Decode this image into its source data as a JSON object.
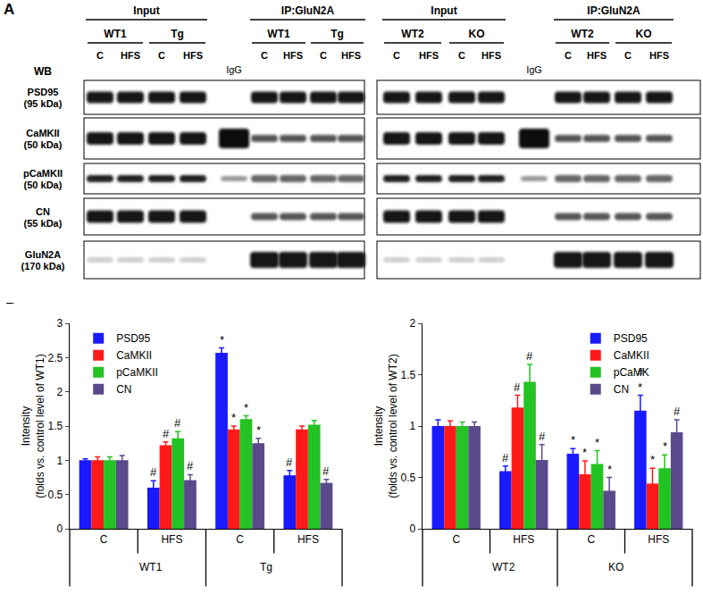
{
  "panel_labels": [
    "A",
    "B"
  ],
  "blot": {
    "row_header": "WB",
    "rows": [
      {
        "name": "PSD95",
        "size": "(95 kDa)"
      },
      {
        "name": "CaMKII",
        "size": "(50 kDa)"
      },
      {
        "name": "pCaMKII",
        "size": "(50 kDa)"
      },
      {
        "name": "CN",
        "size": "(55 kDa)"
      },
      {
        "name": "GluN2A",
        "size": "(170 kDa)"
      }
    ],
    "blocks": [
      {
        "input": {
          "title": "Input",
          "groups": [
            {
              "name": "WT1",
              "lanes": [
                "C",
                "HFS"
              ]
            },
            {
              "name": "Tg",
              "lanes": [
                "C",
                "HFS"
              ]
            }
          ]
        },
        "control_lane": "IgG",
        "ip": {
          "title": "IP:GluN2A",
          "groups": [
            {
              "name": "WT1",
              "lanes": [
                "C",
                "HFS"
              ]
            },
            {
              "name": "Tg",
              "lanes": [
                "C",
                "HFS"
              ]
            }
          ]
        }
      },
      {
        "input": {
          "title": "Input",
          "groups": [
            {
              "name": "WT2",
              "lanes": [
                "C",
                "HFS"
              ]
            },
            {
              "name": "KO",
              "lanes": [
                "C",
                "HFS"
              ]
            }
          ]
        },
        "control_lane": "IgG",
        "ip": {
          "title": "IP:GluN2A",
          "groups": [
            {
              "name": "WT2",
              "lanes": [
                "C",
                "HFS"
              ]
            },
            {
              "name": "KO",
              "lanes": [
                "C",
                "HFS"
              ]
            }
          ]
        }
      }
    ]
  },
  "chart_data": [
    {
      "type": "bar",
      "y_label": "Intensity\n(folds vs. control level of WT1)",
      "categories": [
        [
          "WT1",
          "C"
        ],
        [
          "WT1",
          "HFS"
        ],
        [
          "Tg",
          "C"
        ],
        [
          "Tg",
          "HFS"
        ]
      ],
      "series": [
        {
          "name": "PSD95",
          "color": "#1a1aff",
          "values": [
            1.0,
            0.6,
            2.57,
            0.78
          ],
          "errors": [
            0.02,
            0.1,
            0.07,
            0.07
          ],
          "annotations": [
            null,
            "#",
            "*",
            "#"
          ]
        },
        {
          "name": "CaMKII",
          "color": "#ff1a1a",
          "values": [
            1.0,
            1.22,
            1.45,
            1.45
          ],
          "errors": [
            0.05,
            0.05,
            0.05,
            0.05
          ],
          "annotations": [
            null,
            "#",
            "*",
            null
          ]
        },
        {
          "name": "pCaMKII",
          "color": "#22c322",
          "values": [
            1.0,
            1.32,
            1.6,
            1.52
          ],
          "errors": [
            0.05,
            0.1,
            0.05,
            0.06
          ],
          "annotations": [
            null,
            "#",
            "*",
            null
          ]
        },
        {
          "name": "CN",
          "color": "#5a4a8c",
          "values": [
            1.0,
            0.71,
            1.25,
            0.67
          ],
          "errors": [
            0.07,
            0.08,
            0.07,
            0.05
          ],
          "annotations": [
            null,
            "#",
            "*",
            "#"
          ]
        }
      ],
      "ylim": [
        0,
        3
      ],
      "yticks": [
        0,
        0.5,
        1,
        1.5,
        2,
        2.5,
        3
      ],
      "legend": "top left"
    },
    {
      "type": "bar",
      "y_label": "Intensity\n(folds vs. control level of WT2)",
      "categories": [
        [
          "WT2",
          "C"
        ],
        [
          "WT2",
          "HFS"
        ],
        [
          "KO",
          "C"
        ],
        [
          "KO",
          "HFS"
        ]
      ],
      "series": [
        {
          "name": "PSD95",
          "color": "#1a1aff",
          "values": [
            1.0,
            0.56,
            0.73,
            1.15
          ],
          "errors": [
            0.06,
            0.05,
            0.05,
            0.15
          ],
          "annotations": [
            null,
            "#",
            "*",
            "#\n*"
          ]
        },
        {
          "name": "CaMKII",
          "color": "#ff1a1a",
          "values": [
            1.0,
            1.18,
            0.53,
            0.44
          ],
          "errors": [
            0.05,
            0.12,
            0.13,
            0.15
          ],
          "annotations": [
            null,
            "#",
            "*",
            "*"
          ]
        },
        {
          "name": "pCaMK",
          "color": "#22c322",
          "values": [
            1.0,
            1.43,
            0.63,
            0.59
          ],
          "errors": [
            0.04,
            0.17,
            0.13,
            0.13
          ],
          "annotations": [
            null,
            "#",
            "*",
            "*"
          ]
        },
        {
          "name": "CN",
          "color": "#5a4a8c",
          "values": [
            1.0,
            0.67,
            0.37,
            0.94
          ],
          "errors": [
            0.04,
            0.15,
            0.13,
            0.12
          ],
          "annotations": [
            null,
            "#",
            "*",
            "#"
          ]
        }
      ],
      "ylim": [
        0,
        2
      ],
      "yticks": [
        0,
        0.5,
        1,
        1.5,
        2
      ],
      "legend": "top right"
    }
  ]
}
